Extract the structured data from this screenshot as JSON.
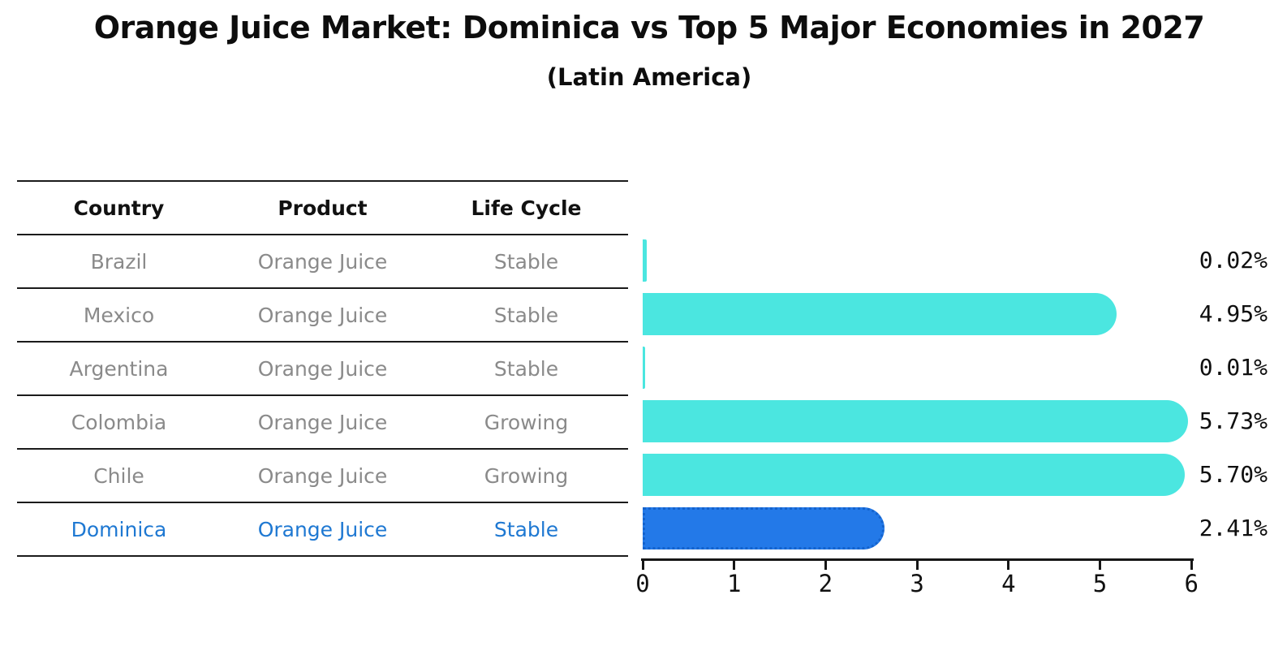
{
  "figure": {
    "title": "Orange Juice Market: Dominica vs Top 5 Major Economies in 2027",
    "subtitle": "(Latin America)"
  },
  "table": {
    "headers": [
      "Country",
      "Product",
      "Life Cycle"
    ],
    "rows": [
      {
        "country": "Brazil",
        "product": "Orange Juice",
        "life_cycle": "Stable",
        "highlight": false
      },
      {
        "country": "Mexico",
        "product": "Orange Juice",
        "life_cycle": "Stable",
        "highlight": false
      },
      {
        "country": "Argentina",
        "product": "Orange Juice",
        "life_cycle": "Stable",
        "highlight": false
      },
      {
        "country": "Colombia",
        "product": "Orange Juice",
        "life_cycle": "Growing",
        "highlight": false
      },
      {
        "country": "Chile",
        "product": "Orange Juice",
        "life_cycle": "Growing",
        "highlight": false
      },
      {
        "country": "Dominica",
        "product": "Orange Juice",
        "life_cycle": "Stable",
        "highlight": true
      }
    ]
  },
  "chart_data": {
    "type": "bar",
    "orientation": "horizontal",
    "title": "Orange Juice Market: Dominica vs Top 5 Major Economies in 2027",
    "subtitle": "(Latin America)",
    "categories": [
      "Brazil",
      "Mexico",
      "Argentina",
      "Colombia",
      "Chile",
      "Dominica"
    ],
    "values": [
      0.02,
      4.95,
      0.01,
      5.73,
      5.7,
      2.41
    ],
    "value_labels": [
      "0.02%",
      "4.95%",
      "0.01%",
      "5.73%",
      "5.70%",
      "2.41%"
    ],
    "xlim": [
      0,
      6
    ],
    "x_ticks": [
      "0",
      "1",
      "2",
      "3",
      "4",
      "5",
      "6"
    ],
    "grid": false,
    "legend": "none",
    "highlight_index": 5
  },
  "colors": {
    "bar": "#4BE6E0",
    "highlight_bar": "#2379E8",
    "highlight_bar_border": "#1463CD",
    "highlight_text": "#1E78D2",
    "table_text": "#8A8A8A",
    "heading_text": "#0D0D0D",
    "line": "#1B1B1B"
  }
}
